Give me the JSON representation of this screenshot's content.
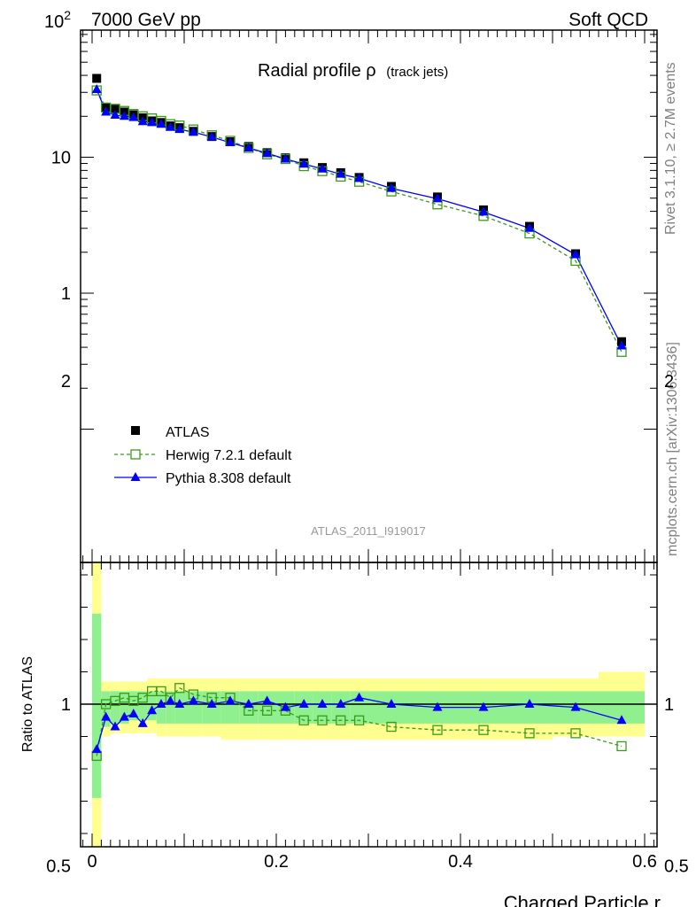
{
  "header": {
    "left": "7000 GeV pp",
    "right": "Soft QCD"
  },
  "side_labels": {
    "rivet": "Rivet 3.1.10, ≥ 2.7M events",
    "mcplots": "mcplots.cern.ch [arXiv:1306.3436]"
  },
  "colors": {
    "atlas": "#000000",
    "herwig": "#3a9a1a",
    "pythia": "#0000ff",
    "band_inner": "#90f090",
    "band_outer": "#ffff90"
  },
  "chart_data": [
    {
      "type": "scatter",
      "title": "Radial profile ρ",
      "title_sub": "(track jets)",
      "watermark": "ATLAS_2011_I919017",
      "xlabel": "",
      "ylabel": "",
      "xlim": [
        0,
        0.6
      ],
      "ylim": [
        0.15,
        700
      ],
      "yscale": "log",
      "y_ticks": [
        {
          "v": 100,
          "base": "10",
          "exp": "2"
        },
        {
          "v": 10,
          "label": "10"
        },
        {
          "v": 1,
          "label": "1"
        }
      ],
      "legend_position": "bottom-left",
      "x": [
        0.005,
        0.015,
        0.025,
        0.035,
        0.045,
        0.055,
        0.065,
        0.075,
        0.085,
        0.095,
        0.11,
        0.13,
        0.15,
        0.17,
        0.19,
        0.21,
        0.23,
        0.25,
        0.27,
        0.29,
        0.325,
        0.375,
        0.425,
        0.475,
        0.525,
        0.575
      ],
      "series": [
        {
          "name": "ATLAS",
          "marker": "square-filled",
          "values": [
            38,
            23,
            22.5,
            21.5,
            20.5,
            19.5,
            18.5,
            18,
            17,
            16.5,
            15.5,
            14.2,
            13,
            12,
            10.8,
            9.9,
            9.1,
            8.4,
            7.7,
            7.1,
            6.1,
            5.1,
            4.1,
            3.1,
            1.95,
            0.44
          ]
        },
        {
          "name": "Herwig 7.2.1 default",
          "marker": "square-open",
          "line": "dashed",
          "values": [
            31,
            23.2,
            22.7,
            21.9,
            20.8,
            20.0,
            19.3,
            18.5,
            17.5,
            17.1,
            16.0,
            14.5,
            13.2,
            11.7,
            10.5,
            9.7,
            8.6,
            7.9,
            7.2,
            6.6,
            5.6,
            4.5,
            3.7,
            2.75,
            1.73,
            0.37
          ]
        },
        {
          "name": "Pythia 8.308 default",
          "marker": "triangle",
          "line": "solid",
          "values": [
            31.5,
            21.5,
            20.4,
            20.0,
            19.6,
            18.3,
            18.0,
            17.5,
            16.6,
            16.0,
            15.3,
            14.1,
            12.8,
            11.7,
            10.7,
            9.7,
            8.9,
            8.2,
            7.5,
            7.0,
            5.9,
            4.95,
            3.95,
            3.0,
            1.92,
            0.41
          ]
        }
      ]
    },
    {
      "type": "scatter",
      "xlabel": "Charged Particle r",
      "ylabel": "Ratio to ATLAS",
      "xlim": [
        0,
        0.6
      ],
      "ylim": [
        0.35,
        2.3
      ],
      "x_ticks": [
        {
          "v": 0,
          "label": "0"
        },
        {
          "v": 0.2,
          "label": "0.2"
        },
        {
          "v": 0.4,
          "label": "0.4"
        },
        {
          "v": 0.6,
          "label": "0.6"
        }
      ],
      "y_ticks": [
        {
          "v": 2,
          "label": "2"
        },
        {
          "v": 1,
          "label": "1"
        },
        {
          "v": 0.5,
          "label": "0.5"
        }
      ],
      "x": [
        0.005,
        0.015,
        0.025,
        0.035,
        0.045,
        0.055,
        0.065,
        0.075,
        0.085,
        0.095,
        0.11,
        0.13,
        0.15,
        0.17,
        0.19,
        0.21,
        0.23,
        0.25,
        0.27,
        0.29,
        0.325,
        0.375,
        0.425,
        0.475,
        0.525,
        0.575
      ],
      "band": {
        "x_edges": [
          0,
          0.01,
          0.02,
          0.03,
          0.04,
          0.05,
          0.06,
          0.07,
          0.08,
          0.09,
          0.1,
          0.12,
          0.14,
          0.16,
          0.18,
          0.2,
          0.22,
          0.24,
          0.26,
          0.28,
          0.3,
          0.35,
          0.4,
          0.45,
          0.5,
          0.55,
          0.6
        ],
        "outer_lo": [
          0.35,
          0.9,
          0.91,
          0.91,
          0.91,
          0.91,
          0.91,
          0.9,
          0.9,
          0.9,
          0.9,
          0.9,
          0.89,
          0.89,
          0.89,
          0.89,
          0.89,
          0.89,
          0.89,
          0.89,
          0.89,
          0.89,
          0.89,
          0.89,
          0.9,
          0.9
        ],
        "outer_hi": [
          1.5,
          1.07,
          1.07,
          1.07,
          1.07,
          1.07,
          1.08,
          1.08,
          1.08,
          1.08,
          1.08,
          1.08,
          1.08,
          1.08,
          1.08,
          1.08,
          1.08,
          1.08,
          1.08,
          1.08,
          1.08,
          1.08,
          1.08,
          1.08,
          1.08,
          1.1
        ],
        "inner_lo": [
          0.71,
          0.93,
          0.94,
          0.94,
          0.95,
          0.95,
          0.95,
          0.94,
          0.94,
          0.94,
          0.94,
          0.94,
          0.94,
          0.94,
          0.94,
          0.94,
          0.94,
          0.94,
          0.94,
          0.94,
          0.94,
          0.94,
          0.94,
          0.94,
          0.94,
          0.94
        ],
        "inner_hi": [
          1.28,
          1.04,
          1.04,
          1.04,
          1.04,
          1.04,
          1.04,
          1.04,
          1.04,
          1.04,
          1.04,
          1.04,
          1.04,
          1.04,
          1.04,
          1.04,
          1.04,
          1.04,
          1.04,
          1.04,
          1.04,
          1.04,
          1.04,
          1.04,
          1.04,
          1.04
        ]
      },
      "series": [
        {
          "name": "Herwig 7.2.1 default",
          "marker": "square-open",
          "line": "dashed",
          "values": [
            0.84,
            1.0,
            1.01,
            1.02,
            1.01,
            1.02,
            1.04,
            1.04,
            1.02,
            1.05,
            1.03,
            1.02,
            1.02,
            0.98,
            0.98,
            0.98,
            0.95,
            0.95,
            0.95,
            0.95,
            0.93,
            0.92,
            0.92,
            0.91,
            0.91,
            0.87
          ]
        },
        {
          "name": "Pythia 8.308 default",
          "marker": "triangle",
          "line": "solid",
          "values": [
            0.86,
            0.96,
            0.93,
            0.96,
            0.97,
            0.94,
            0.98,
            1.0,
            1.01,
            1.0,
            1.01,
            1.0,
            1.01,
            1.0,
            1.01,
            0.99,
            1.0,
            1.0,
            1.0,
            1.02,
            1.0,
            0.99,
            0.99,
            1.0,
            0.99,
            0.95
          ]
        }
      ]
    }
  ]
}
